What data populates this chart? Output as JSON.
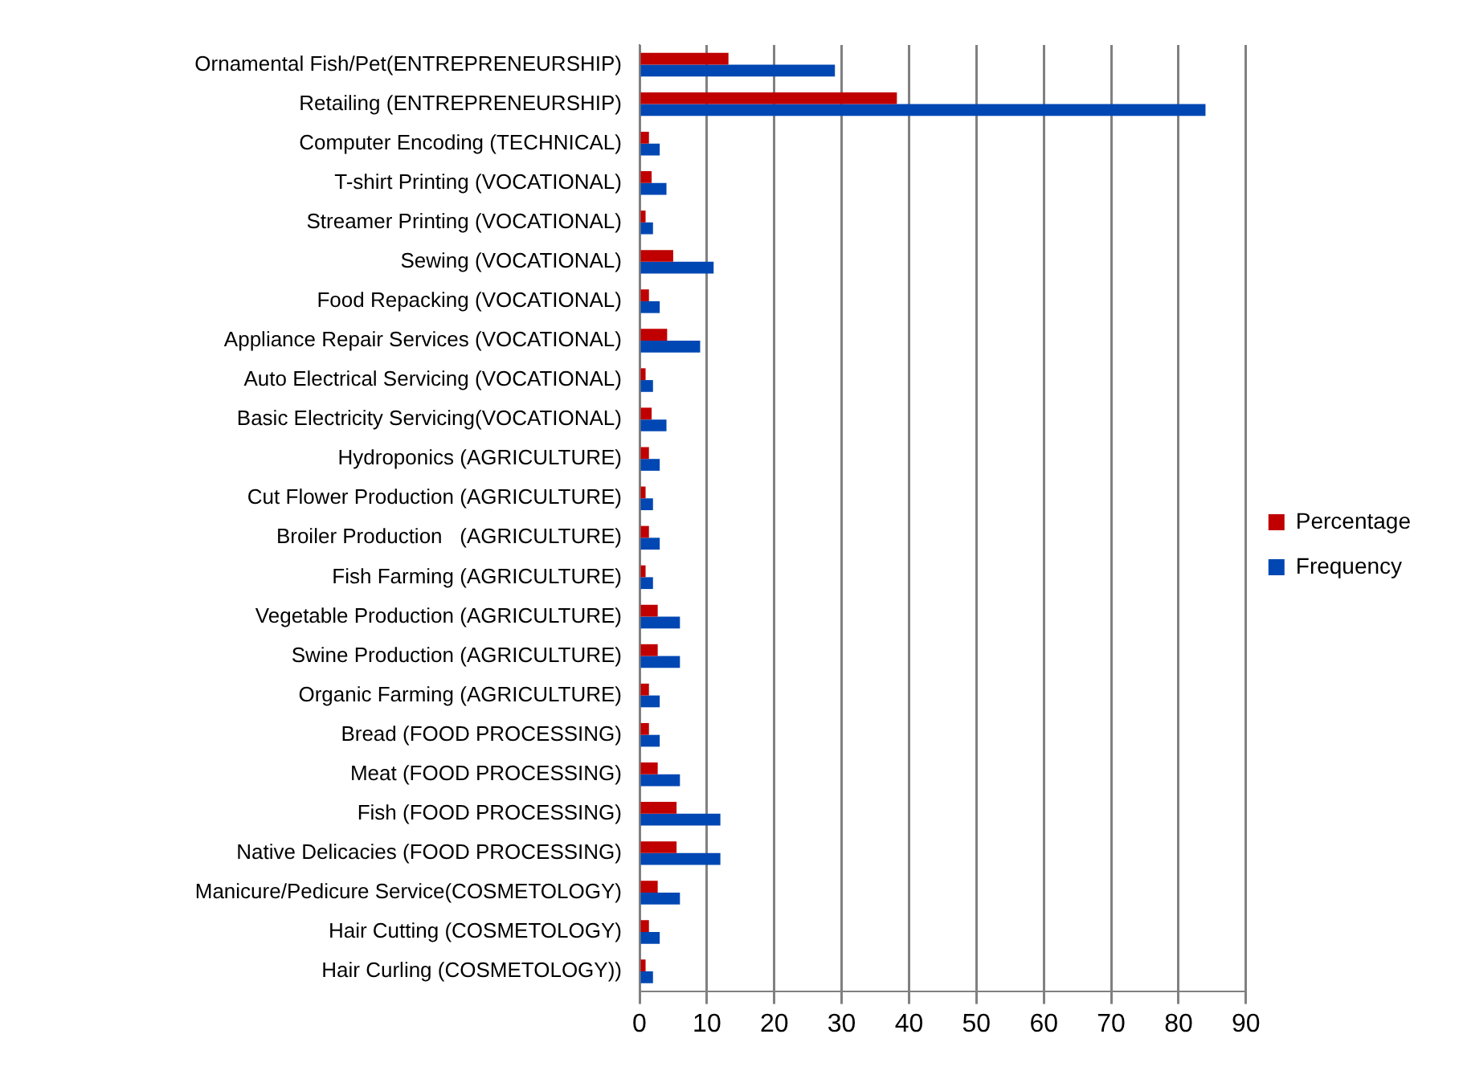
{
  "chart_data": {
    "type": "bar",
    "orientation": "horizontal",
    "categories": [
      "Ornamental Fish/Pet(ENTREPRENEURSHIP)",
      "Retailing (ENTREPRENEURSHIP)",
      "Computer Encoding (TECHNICAL)",
      "T-shirt Printing (VOCATIONAL)",
      "Streamer Printing (VOCATIONAL)",
      "Sewing (VOCATIONAL)",
      "Food Repacking (VOCATIONAL)",
      "Appliance Repair Services (VOCATIONAL)",
      "Auto Electrical Servicing (VOCATIONAL)",
      "Basic Electricity Servicing(VOCATIONAL)",
      "Hydroponics (AGRICULTURE)",
      "Cut Flower Production (AGRICULTURE)",
      "Broiler Production   (AGRICULTURE)",
      "Fish Farming (AGRICULTURE)",
      "Vegetable Production (AGRICULTURE)",
      "Swine Production (AGRICULTURE)",
      "Organic Farming (AGRICULTURE)",
      "Bread (FOOD PROCESSING)",
      "Meat (FOOD PROCESSING)",
      "Fish (FOOD PROCESSING)",
      "Native Delicacies (FOOD PROCESSING)",
      "Manicure/Pedicure Service(COSMETOLOGY)",
      "Hair Cutting (COSMETOLOGY)",
      "Hair Curling (COSMETOLOGY))"
    ],
    "series": [
      {
        "name": "Percentage",
        "color": "#c00000",
        "values": [
          13.2,
          38.2,
          1.4,
          1.8,
          0.9,
          5,
          1.4,
          4.1,
          0.9,
          1.8,
          1.4,
          0.9,
          1.4,
          0.9,
          2.7,
          2.7,
          1.4,
          1.4,
          2.7,
          5.5,
          5.5,
          2.7,
          1.4,
          0.9
        ]
      },
      {
        "name": "Frequency",
        "color": "#0047b3",
        "values": [
          29,
          84,
          3,
          4,
          2,
          11,
          3,
          9,
          2,
          4,
          3,
          2,
          3,
          2,
          6,
          6,
          3,
          3,
          6,
          12,
          12,
          6,
          3,
          2
        ]
      }
    ],
    "xlim": [
      0,
      90
    ],
    "xticks": [
      0,
      10,
      20,
      30,
      40,
      50,
      60,
      70,
      80,
      90
    ],
    "grid": "x",
    "legend": "right"
  }
}
